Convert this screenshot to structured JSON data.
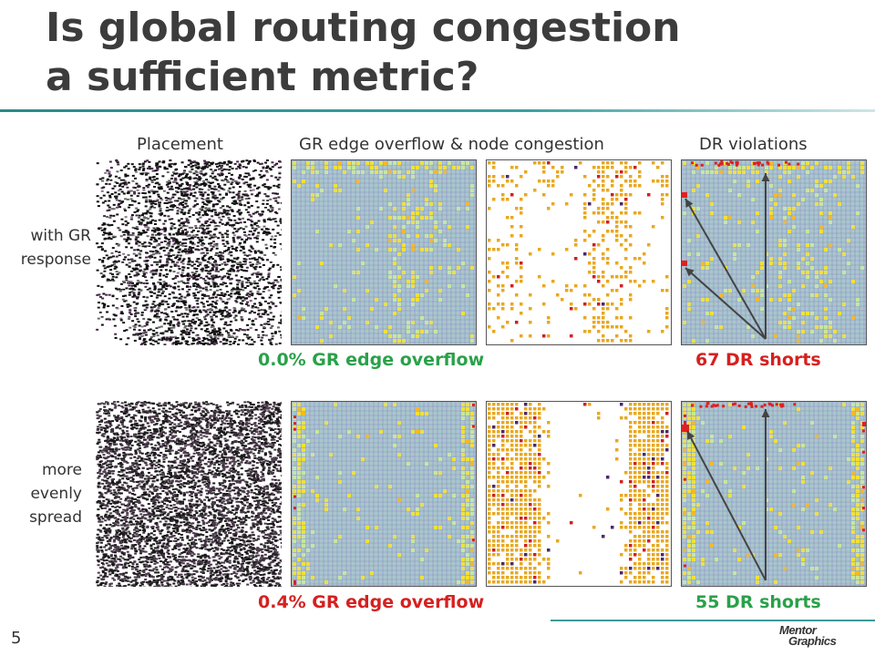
{
  "slide": {
    "title_line1": "Is global routing congestion",
    "title_line2": "a sufficient metric?",
    "page_number": "5"
  },
  "columns": {
    "placement": "Placement",
    "gr_overflow_node_congestion": "GR edge overflow & node congestion",
    "dr_violations": "DR violations"
  },
  "rows": [
    {
      "label_line1": "with GR",
      "label_line2": "response",
      "label_line3": "",
      "gr_stat": "0.0% GR edge overflow",
      "dr_stat": "67 DR shorts",
      "gr_stat_color": "#2aa14a",
      "dr_stat_color": "#d62020"
    },
    {
      "label_line1": "more",
      "label_line2": "evenly",
      "label_line3": "spread",
      "gr_stat": "0.4% GR edge overflow",
      "dr_stat": "55 DR shorts",
      "gr_stat_color": "#d62020",
      "dr_stat_color": "#2aa14a"
    }
  ],
  "logo": {
    "line1": "Mentor",
    "line2": "Graphics"
  },
  "colors": {
    "title": "#3c3c3c",
    "accent_rule": "#2a8a8a",
    "grid_fill": "#a9c7cc",
    "congestion_yellow": "#f0e040",
    "node_orange": "#e8a820",
    "violation_red": "#e02020"
  }
}
